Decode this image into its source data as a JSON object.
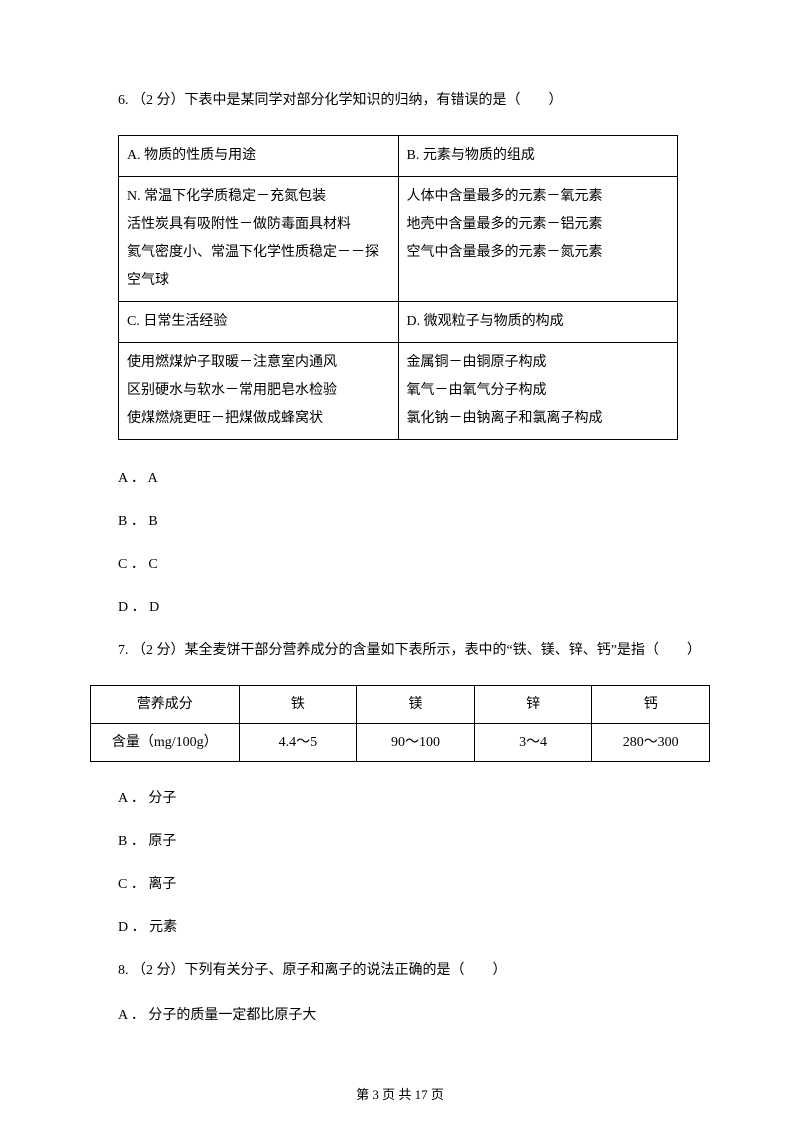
{
  "q6": {
    "stem": "6. （2 分）下表中是某同学对部分化学知识的归纳，有错误的是（　　）",
    "table": {
      "r1c1": "A. 物质的性质与用途",
      "r1c2": "B. 元素与物质的组成",
      "r2c1": "N. 常温下化学质稳定－充氮包装\n活性炭具有吸附性－做防毒面具材料\n氦气密度小、常温下化学性质稳定－－探空气球",
      "r2c2": "人体中含量最多的元素－氧元素\n地壳中含量最多的元素－铝元素\n空气中含量最多的元素－氮元素",
      "r3c1": "C. 日常生活经验",
      "r3c2": "D. 微观粒子与物质的构成",
      "r4c1": "使用燃煤炉子取暖－注意室内通风\n区别硬水与软水－常用肥皂水检验\n使煤燃烧更旺－把煤做成蜂窝状",
      "r4c2": "金属铜－由铜原子构成\n氧气－由氧气分子构成\n氯化钠－由钠离子和氯离子构成"
    },
    "options": {
      "A": "A ． A",
      "B": "B ． B",
      "C": "C ． C",
      "D": "D ． D"
    }
  },
  "q7": {
    "stem": "7. （2 分）某全麦饼干部分营养成分的含量如下表所示，表中的“铁、镁、锌、钙”是指（　　）",
    "table": {
      "h0": "营养成分",
      "h1": "铁",
      "h2": "镁",
      "h3": "锌",
      "h4": "钙",
      "r0": "含量（mg/100g）",
      "r1": "4.4～5",
      "r2": "90～100",
      "r3": "3～4",
      "r4": "280～300"
    },
    "options": {
      "A": "A ． 分子",
      "B": "B ． 原子",
      "C": "C ． 离子",
      "D": "D ． 元素"
    }
  },
  "q8": {
    "stem": "8. （2 分）下列有关分子、原子和离子的说法正确的是（　　）",
    "options": {
      "A": "A ． 分子的质量一定都比原子大"
    }
  },
  "footer": "第 3 页 共 17 页"
}
